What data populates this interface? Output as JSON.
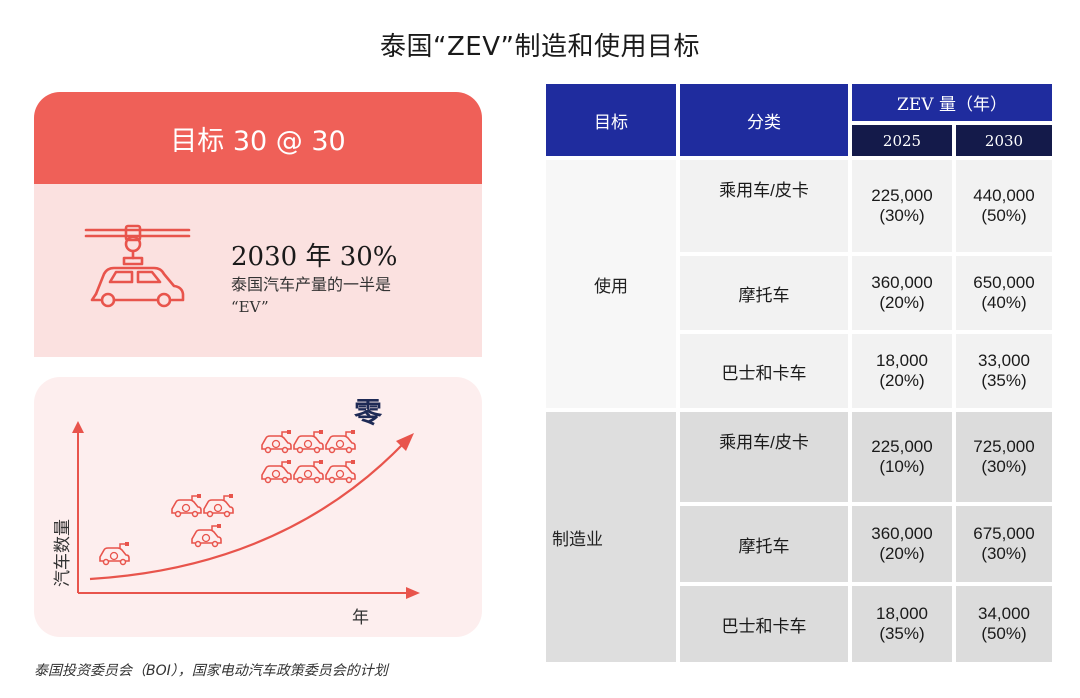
{
  "title": "泰国“ZEV”制造和使用目标",
  "goal": {
    "header": "目标 30 @ 30",
    "big": "2030 年 30%",
    "sub_line1": "泰国汽车产量的一半是",
    "sub_line2": "“EV”"
  },
  "curve": {
    "zero_label": "零",
    "y_label": "汽车数量",
    "x_label": "年"
  },
  "table": {
    "col_target": "目标",
    "col_category": "分类",
    "col_zev": "ZEV 量（年）",
    "year1": "2025",
    "year2": "2030",
    "groups": [
      {
        "name": "使用",
        "rows": [
          {
            "category": "乘用车/皮卡",
            "v2025": "225,000",
            "p2025": "(30%)",
            "v2030": "440,000",
            "p2030": "(50%)"
          },
          {
            "category": "摩托车",
            "v2025": "360,000",
            "p2025": "(20%)",
            "v2030": "650,000",
            "p2030": "(40%)"
          },
          {
            "category": "巴士和卡车",
            "v2025": "18,000",
            "p2025": "(20%)",
            "v2030": "33,000",
            "p2030": "(35%)"
          }
        ]
      },
      {
        "name": "制造业",
        "rows": [
          {
            "category": "乘用车/皮卡",
            "v2025": "225,000",
            "p2025": "(10%)",
            "v2030": "725,000",
            "p2030": "(30%)"
          },
          {
            "category": "摩托车",
            "v2025": "360,000",
            "p2025": "(20%)",
            "v2030": "675,000",
            "p2030": "(30%)"
          },
          {
            "category": "巴士和卡车",
            "v2025": "18,000",
            "p2025": "(35%)",
            "v2030": "34,000",
            "p2030": "(50%)"
          }
        ]
      }
    ]
  },
  "footnote": "泰国投资委员会（BOI），国家电动汽车政策委员会的计划",
  "colors": {
    "accent_red": "#ef6058",
    "pink_bg": "#fbe1e0",
    "table_blue": "#1f2c9e",
    "table_navy": "#141a4a"
  },
  "icons": [
    "robot-arm-car-icon",
    "ev-charging-car-icon",
    "growth-arrow-icon"
  ]
}
